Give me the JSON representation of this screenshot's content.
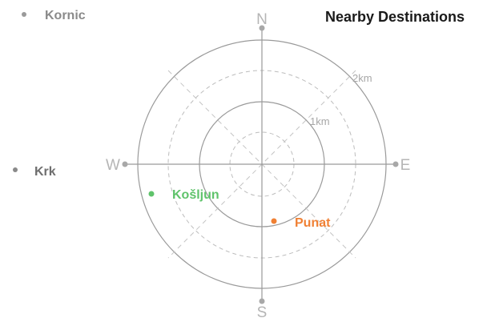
{
  "header": {
    "title": "Nearby Destinations"
  },
  "compass": {
    "cardinals": {
      "north": "N",
      "east": "E",
      "south": "S",
      "west": "W"
    },
    "ring_labels": {
      "inner": "1km",
      "outer": "2km"
    }
  },
  "offscreen_places": [
    {
      "name": "Kornic",
      "color": "#8a8a8a"
    },
    {
      "name": "Krk",
      "color": "#6e6e6e"
    }
  ],
  "destinations": [
    {
      "name": "Košljun",
      "color": "#5fc36b"
    },
    {
      "name": "Punat",
      "color": "#f08034"
    }
  ]
}
